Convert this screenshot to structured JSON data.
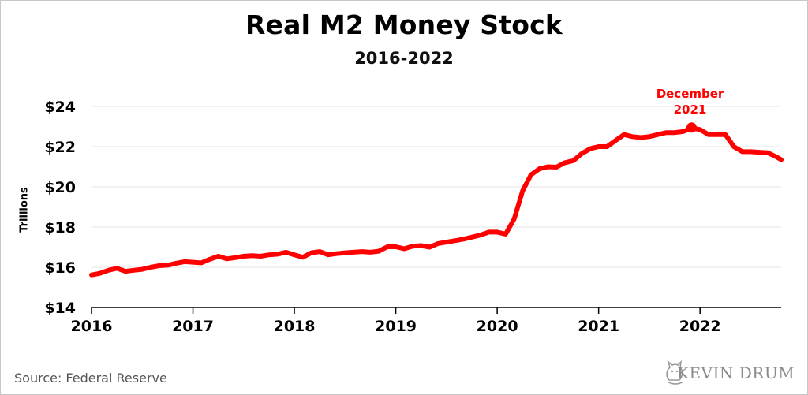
{
  "chart_data": {
    "type": "line",
    "title": "Real M2 Money Stock",
    "subtitle": "2016-2022",
    "ylabel": "Trillions",
    "xlabel": "",
    "xlim": [
      2016,
      2022.8
    ],
    "ylim": [
      14,
      24
    ],
    "x_ticks": [
      2016,
      2017,
      2018,
      2019,
      2020,
      2021,
      2022
    ],
    "x_tick_labels": [
      "2016",
      "2017",
      "2018",
      "2019",
      "2020",
      "2021",
      "2022"
    ],
    "y_ticks": [
      14,
      16,
      18,
      20,
      22,
      24
    ],
    "y_tick_labels": [
      "$14",
      "$16",
      "$18",
      "$20",
      "$22",
      "$24"
    ],
    "grid": true,
    "color": "#ff0000",
    "series": [
      {
        "x": [
          2016.0,
          2016.083,
          2016.167,
          2016.25,
          2016.333,
          2016.417,
          2016.5,
          2016.583,
          2016.667,
          2016.75,
          2016.833,
          2016.917,
          2017.0,
          2017.083,
          2017.167,
          2017.25,
          2017.333,
          2017.417,
          2017.5,
          2017.583,
          2017.667,
          2017.75,
          2017.833,
          2017.917,
          2018.0,
          2018.083,
          2018.167,
          2018.25,
          2018.333,
          2018.417,
          2018.5,
          2018.583,
          2018.667,
          2018.75,
          2018.833,
          2018.917,
          2019.0,
          2019.083,
          2019.167,
          2019.25,
          2019.333,
          2019.417,
          2019.5,
          2019.583,
          2019.667,
          2019.75,
          2019.833,
          2019.917,
          2020.0,
          2020.083,
          2020.167,
          2020.25,
          2020.333,
          2020.417,
          2020.5,
          2020.583,
          2020.667,
          2020.75,
          2020.833,
          2020.917,
          2021.0,
          2021.083,
          2021.167,
          2021.25,
          2021.333,
          2021.417,
          2021.5,
          2021.583,
          2021.667,
          2021.75,
          2021.833,
          2021.917,
          2022.0,
          2022.083,
          2022.167,
          2022.25,
          2022.333,
          2022.417,
          2022.5,
          2022.583,
          2022.667,
          2022.75,
          2022.8
        ],
        "values": [
          15.62,
          15.7,
          15.85,
          15.95,
          15.8,
          15.85,
          15.9,
          16.0,
          16.08,
          16.1,
          16.2,
          16.28,
          16.25,
          16.22,
          16.4,
          16.55,
          16.42,
          16.48,
          16.55,
          16.58,
          16.55,
          16.62,
          16.65,
          16.75,
          16.62,
          16.5,
          16.72,
          16.78,
          16.62,
          16.68,
          16.72,
          16.75,
          16.78,
          16.75,
          16.8,
          17.02,
          17.02,
          16.92,
          17.05,
          17.08,
          17.0,
          17.18,
          17.25,
          17.32,
          17.4,
          17.5,
          17.6,
          17.75,
          17.75,
          17.65,
          18.4,
          19.8,
          20.6,
          20.9,
          21.0,
          20.98,
          21.2,
          21.3,
          21.65,
          21.9,
          22.0,
          22.0,
          22.3,
          22.6,
          22.5,
          22.45,
          22.5,
          22.6,
          22.7,
          22.7,
          22.75,
          22.92,
          22.85,
          22.6,
          22.6,
          22.6,
          22.0,
          21.75,
          21.75,
          21.72,
          21.7,
          21.5,
          21.35
        ]
      }
    ],
    "highlight": {
      "x": 2021.917,
      "y": 22.95,
      "label_line1": "December",
      "label_line2": "2021"
    }
  },
  "source": "Source:  Federal Reserve",
  "brand": {
    "text": "KEVIN DRUM",
    "icon": "cat-logo-icon"
  }
}
